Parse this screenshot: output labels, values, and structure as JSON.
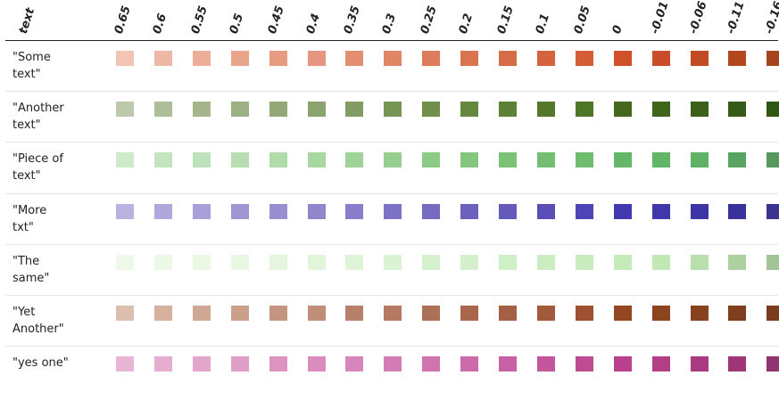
{
  "chart_data": {
    "type": "heatmap",
    "header_label": "text",
    "columns": [
      "0.65",
      "0.6",
      "0.55",
      "0.5",
      "0.45",
      "0.4",
      "0.35",
      "0.3",
      "0.25",
      "0.2",
      "0.15",
      "0.1",
      "0.05",
      "0",
      "-0.01",
      "-0.06",
      "-0.11",
      "-0.16"
    ],
    "rows": [
      {
        "label": "\"Some text\"",
        "colors": [
          "#f2c5b5",
          "#efb8a6",
          "#ecae98",
          "#e9a68d",
          "#e79c82",
          "#e69680",
          "#e38e71",
          "#e08667",
          "#dd7c5d",
          "#d97350",
          "#d66b48",
          "#d4643e",
          "#d35e37",
          "#cf502b",
          "#ca4d29",
          "#c04b24",
          "#b2461d",
          "#a7441f"
        ]
      },
      {
        "label": "\"Another text\"",
        "colors": [
          "#bccaab",
          "#adbf98",
          "#a5b68d",
          "#9bb182",
          "#92a977",
          "#8ba46d",
          "#829c63",
          "#769654",
          "#6f8f4b",
          "#65883f",
          "#5c8236",
          "#55782d",
          "#4f7526",
          "#44681d",
          "#3f651b",
          "#3a6019",
          "#365b18",
          "#315715"
        ]
      },
      {
        "label": "\"Piece of text\"",
        "colors": [
          "#cfeacb",
          "#c3e4bf",
          "#bde2b9",
          "#b6dfb0",
          "#b0dcaa",
          "#a6d8a0",
          "#9fd498",
          "#94cf8f",
          "#8ccb86",
          "#85c77e",
          "#7bc276",
          "#73bf72",
          "#6fbc6e",
          "#64b768",
          "#62b467",
          "#5fb166",
          "#59a462",
          "#57995c"
        ]
      },
      {
        "label": "\"More txt\"",
        "colors": [
          "#bab3e0",
          "#b0a8dd",
          "#a8a0d8",
          "#9f97d5",
          "#988fd2",
          "#8f86cc",
          "#877dca",
          "#7d73c5",
          "#766bc2",
          "#6c61bd",
          "#645abb",
          "#5a4fb6",
          "#4e44b5",
          "#4339b0",
          "#4037ad",
          "#3d35a5",
          "#39329c",
          "#3a348f"
        ]
      },
      {
        "label": "\"The same\"",
        "colors": [
          "#eef9ea",
          "#ecf9e7",
          "#eaf8e4",
          "#e7f7e1",
          "#e4f6de",
          "#e1f5da",
          "#ddf4d6",
          "#daf3d2",
          "#d6f1ce",
          "#d3f0ca",
          "#cfefc6",
          "#cbedc1",
          "#c8ecbd",
          "#c5ebba",
          "#c2e8b6",
          "#b9dfad",
          "#add0a1",
          "#a3c595"
        ]
      },
      {
        "label": "\"Yet Another\"",
        "colors": [
          "#dcbfae",
          "#d5b19e",
          "#cfa994",
          "#cba08a",
          "#c49580",
          "#bf8d78",
          "#b8806a",
          "#b57964",
          "#ac6f57",
          "#a9664c",
          "#a55f45",
          "#a25a3d",
          "#9d5132",
          "#93461f",
          "#8c441e",
          "#87411f",
          "#7f3f1f",
          "#793d1e"
        ]
      },
      {
        "label": "\"yes one\"",
        "colors": [
          "#e8b5d4",
          "#e5add0",
          "#e2a5cb",
          "#e09ec7",
          "#dd93c2",
          "#da8dbd",
          "#d785ba",
          "#d47db5",
          "#d073af",
          "#cd6aab",
          "#c960a6",
          "#c4569e",
          "#c04b95",
          "#b9408c",
          "#b43f89",
          "#aa3a80",
          "#9e3678",
          "#92346f"
        ]
      }
    ]
  }
}
